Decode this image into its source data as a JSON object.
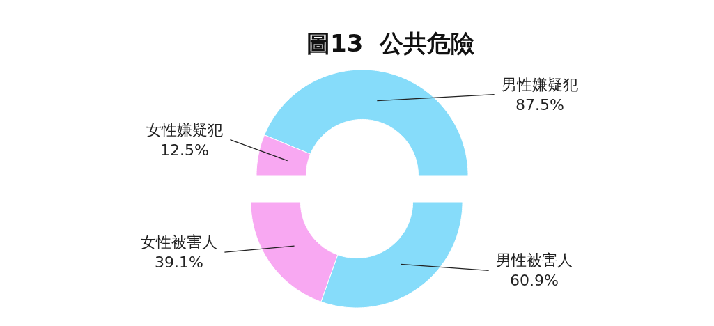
{
  "chart_data": [
    {
      "type": "donut",
      "title": "圖13  公共危險",
      "categories": [
        "男性嫌疑犯",
        "女性嫌疑犯"
      ],
      "values": [
        87.5,
        12.5
      ],
      "colors": [
        "#86dcfa",
        "#f8a8f2"
      ],
      "value_labels": [
        "87.5%",
        "12.5%"
      ]
    },
    {
      "type": "donut",
      "categories": [
        "女性被害人",
        "男性被害人"
      ],
      "values": [
        39.1,
        60.9
      ],
      "colors": [
        "#f8a8f2",
        "#86dcfa"
      ],
      "value_labels": [
        "39.1%",
        "60.9%"
      ]
    }
  ]
}
